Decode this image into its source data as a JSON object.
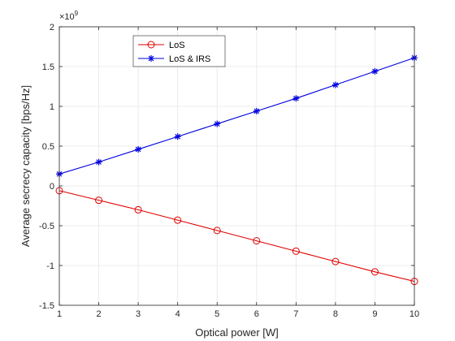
{
  "chart_data": {
    "type": "line",
    "title": "",
    "xlabel": "Optical power [W]",
    "ylabel": "Average secrecy capacity [bps/Hz]",
    "y_exponent_label": "×10",
    "y_exponent": "9",
    "x": [
      1,
      2,
      3,
      4,
      5,
      6,
      7,
      8,
      9,
      10
    ],
    "xlim": [
      1,
      10
    ],
    "ylim": [
      -1.5,
      2
    ],
    "xticks": [
      "1",
      "2",
      "3",
      "4",
      "5",
      "6",
      "7",
      "8",
      "9",
      "10"
    ],
    "yticks": [
      "-1.5",
      "-1",
      "-0.5",
      "0",
      "0.5",
      "1",
      "1.5",
      "2"
    ],
    "grid": true,
    "legend_position": "top-left",
    "series": [
      {
        "name": "LoS",
        "color": "#e00000",
        "marker": "circle",
        "values": [
          -0.06,
          -0.18,
          -0.3,
          -0.43,
          -0.56,
          -0.69,
          -0.82,
          -0.95,
          -1.08,
          -1.2
        ]
      },
      {
        "name": "LoS & IRS",
        "color": "#0000e0",
        "marker": "asterisk",
        "values": [
          0.15,
          0.3,
          0.46,
          0.62,
          0.78,
          0.94,
          1.1,
          1.27,
          1.44,
          1.61
        ]
      }
    ]
  }
}
